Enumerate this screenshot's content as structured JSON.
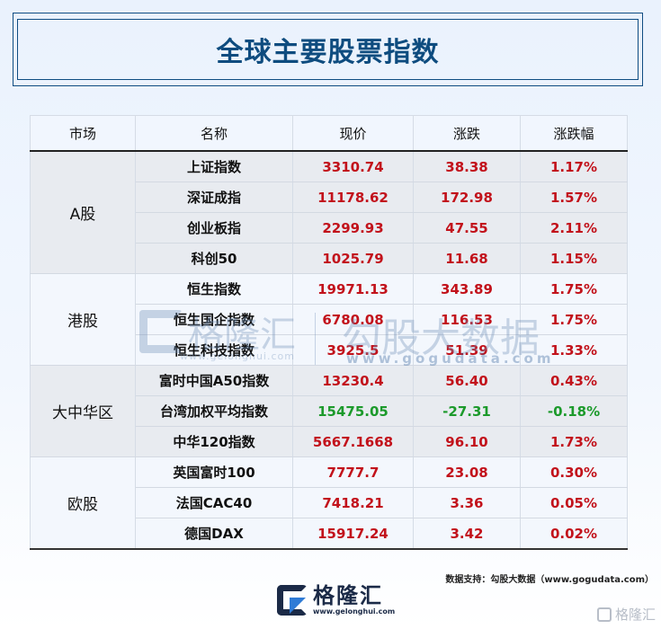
{
  "title": "全球主要股票指数",
  "colors": {
    "title": "#0E4C7F",
    "up": "#C2121B",
    "down": "#1C9A2B"
  },
  "table": {
    "headers": [
      "市场",
      "名称",
      "现价",
      "涨跌",
      "涨跌幅"
    ],
    "groups": [
      {
        "market": "A股",
        "rows": [
          {
            "name": "上证指数",
            "price": "3310.74",
            "change": "38.38",
            "pct": "1.17%",
            "dir": "up"
          },
          {
            "name": "深证成指",
            "price": "11178.62",
            "change": "172.98",
            "pct": "1.57%",
            "dir": "up"
          },
          {
            "name": "创业板指",
            "price": "2299.93",
            "change": "47.55",
            "pct": "2.11%",
            "dir": "up"
          },
          {
            "name": "科创50",
            "price": "1025.79",
            "change": "11.68",
            "pct": "1.15%",
            "dir": "up"
          }
        ]
      },
      {
        "market": "港股",
        "rows": [
          {
            "name": "恒生指数",
            "price": "19971.13",
            "change": "343.89",
            "pct": "1.75%",
            "dir": "up"
          },
          {
            "name": "恒生国企指数",
            "price": "6780.08",
            "change": "116.53",
            "pct": "1.75%",
            "dir": "up"
          },
          {
            "name": "恒生科技指数",
            "price": "3925.5",
            "change": "51.39",
            "pct": "1.33%",
            "dir": "up"
          }
        ]
      },
      {
        "market": "大中华区",
        "rows": [
          {
            "name": "富时中国A50指数",
            "price": "13230.4",
            "change": "56.40",
            "pct": "0.43%",
            "dir": "up"
          },
          {
            "name": "台湾加权平均指数",
            "price": "15475.05",
            "change": "-27.31",
            "pct": "-0.18%",
            "dir": "down"
          },
          {
            "name": "中华120指数",
            "price": "5667.1668",
            "change": "96.10",
            "pct": "1.73%",
            "dir": "up"
          }
        ]
      },
      {
        "market": "欧股",
        "rows": [
          {
            "name": "英国富时100",
            "price": "7777.7",
            "change": "23.08",
            "pct": "0.30%",
            "dir": "up"
          },
          {
            "name": "法国CAC40",
            "price": "7418.21",
            "change": "3.36",
            "pct": "0.05%",
            "dir": "up"
          },
          {
            "name": "德国DAX",
            "price": "15917.24",
            "change": "3.42",
            "pct": "0.02%",
            "dir": "up"
          }
        ]
      }
    ]
  },
  "watermark": {
    "brand": "格隆汇",
    "brand_url": "www.gelonghui.com",
    "partner": "勾股大数据",
    "partner_url": "www.gogudata.com"
  },
  "footnote": "数据支持：勾股大数据（www.gogudata.com）",
  "logo": {
    "name": "格隆汇",
    "url": "www.gelonghui.com",
    "icon": "gelonghui-g-logo-icon"
  },
  "corner_mark": "格隆汇"
}
